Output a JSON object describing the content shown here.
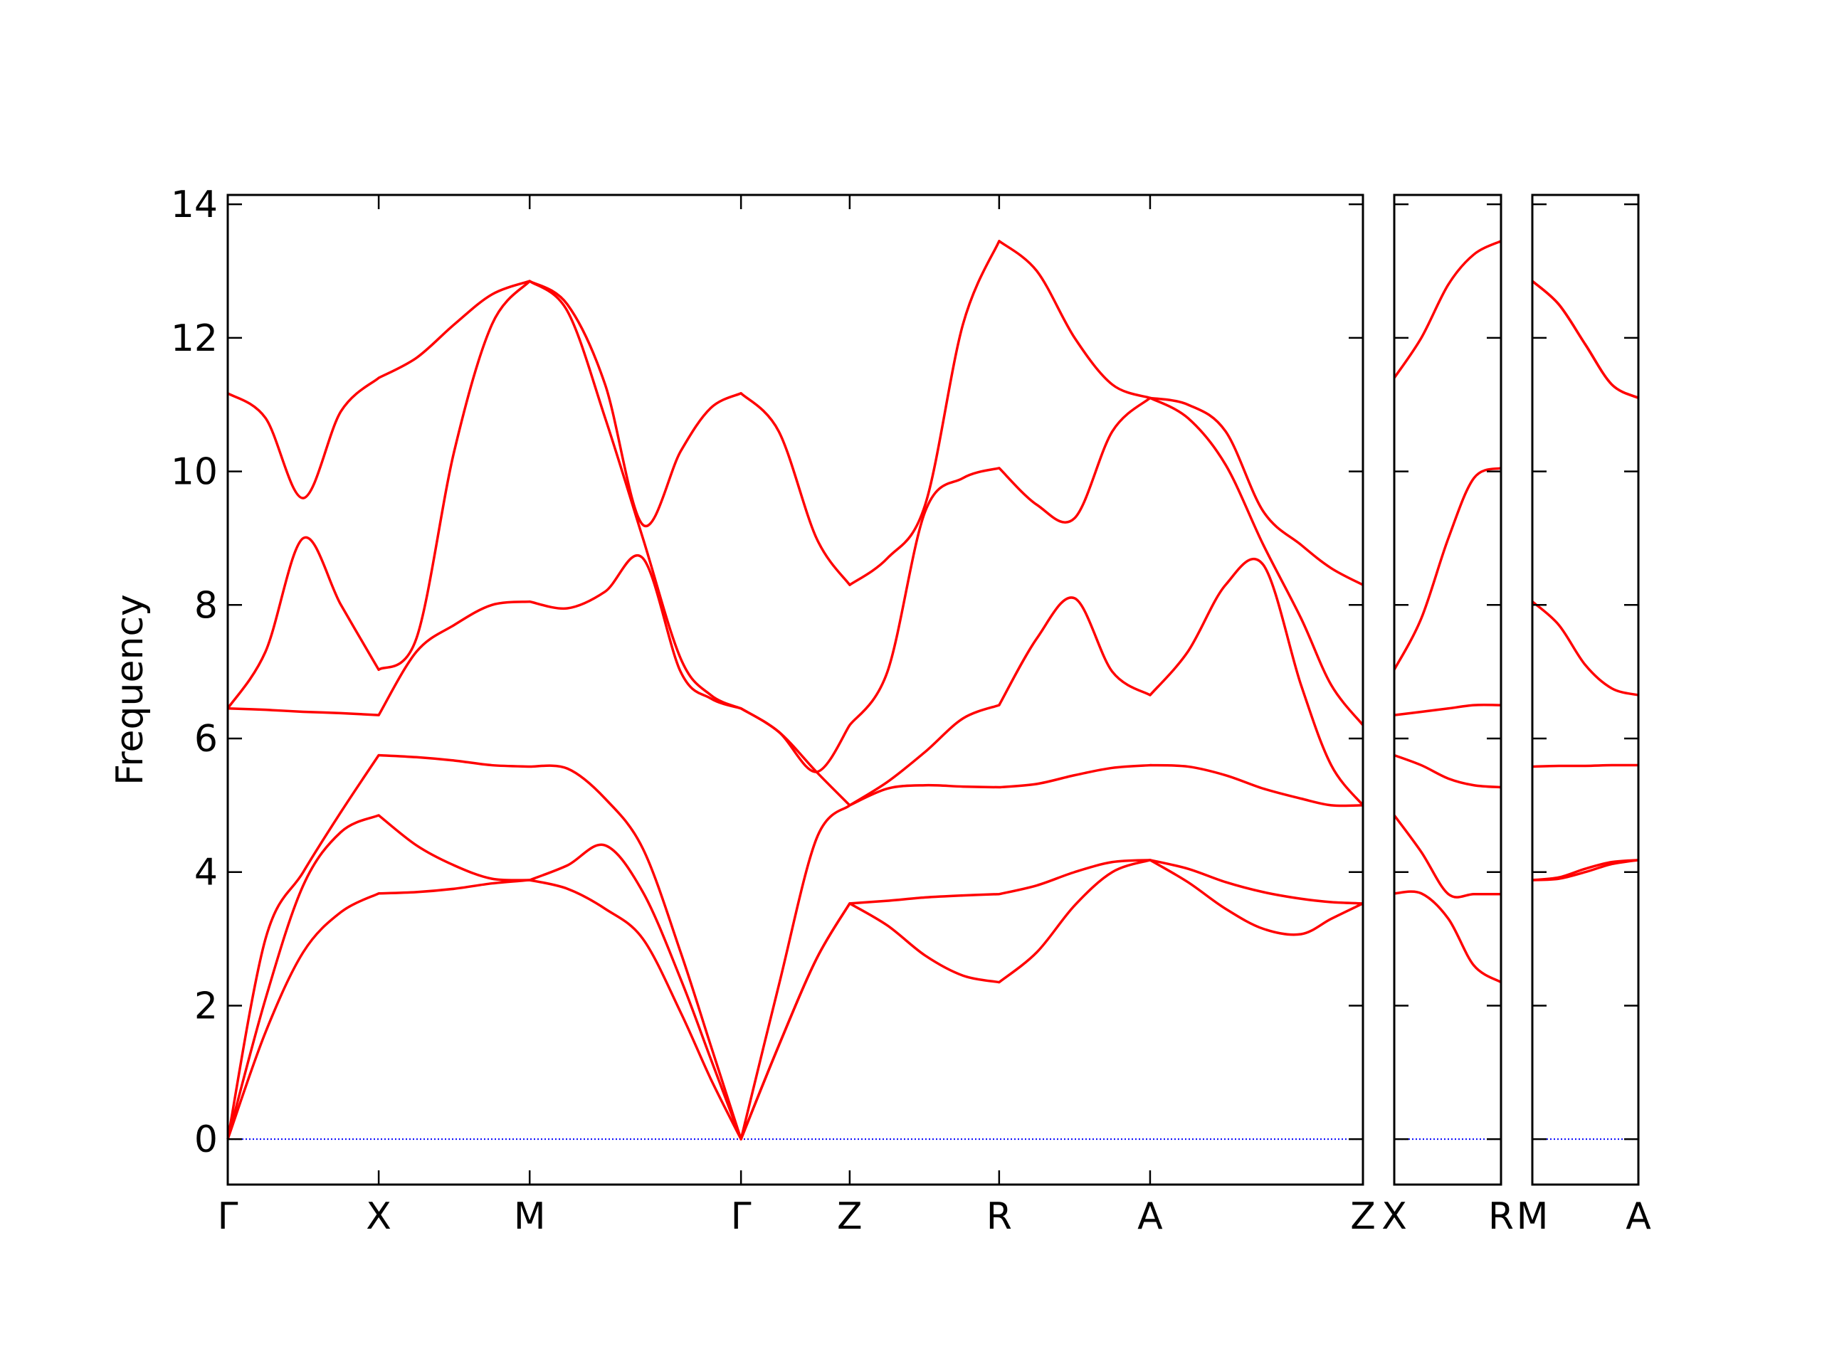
{
  "chart_data": [
    {
      "type": "line",
      "ylabel": "Frequency",
      "ylim": [
        -0.68,
        14.14
      ],
      "yticks": [
        0,
        2,
        4,
        6,
        8,
        10,
        12,
        14
      ],
      "xlim": [
        0,
        7.52
      ],
      "xticks": [
        {
          "value": 0,
          "label": "Γ"
        },
        {
          "value": 1,
          "label": "X"
        },
        {
          "value": 2,
          "label": "M"
        },
        {
          "value": 3.4,
          "label": "Γ"
        },
        {
          "value": 4.12,
          "label": "Z"
        },
        {
          "value": 5.11,
          "label": "R"
        },
        {
          "value": 6.11,
          "label": "A"
        },
        {
          "value": 7.52,
          "label": "Z"
        }
      ],
      "hline": {
        "value": 0,
        "color": "#0000ff"
      },
      "x": [
        0,
        0.25,
        0.5,
        0.75,
        1,
        1.25,
        1.5,
        1.75,
        2,
        2.25,
        2.5,
        2.75,
        3.0,
        3.2,
        3.4,
        3.65,
        3.9,
        4.12,
        4.37,
        4.62,
        4.87,
        5.11,
        5.36,
        5.61,
        5.86,
        6.11,
        6.36,
        6.61,
        6.86,
        7.11,
        7.31,
        7.52
      ],
      "series": [
        {
          "color": "#ff0000",
          "values": [
            0,
            1.6,
            2.8,
            3.4,
            3.68,
            3.7,
            3.75,
            3.83,
            3.88,
            3.75,
            3.45,
            3.0,
            1.9,
            0.9,
            0,
            1.4,
            2.7,
            3.53,
            3.2,
            2.75,
            2.45,
            2.35,
            2.8,
            3.5,
            4.0,
            4.18,
            3.85,
            3.45,
            3.15,
            3.07,
            3.3,
            3.53
          ]
        },
        {
          "color": "#ff0000",
          "values": [
            0,
            2.1,
            3.8,
            4.6,
            4.85,
            4.4,
            4.1,
            3.9,
            3.88,
            4.1,
            4.4,
            3.7,
            2.4,
            1.2,
            0,
            1.4,
            2.7,
            3.53,
            3.57,
            3.62,
            3.65,
            3.67,
            3.8,
            4.0,
            4.15,
            4.18,
            4.05,
            3.85,
            3.7,
            3.6,
            3.55,
            3.53
          ]
        },
        {
          "color": "#ff0000",
          "values": [
            0,
            3.0,
            4.0,
            4.9,
            5.75,
            5.72,
            5.67,
            5.6,
            5.58,
            5.55,
            5.1,
            4.35,
            2.8,
            1.4,
            0,
            2.3,
            4.5,
            5.0,
            5.25,
            5.3,
            5.28,
            5.27,
            5.32,
            5.45,
            5.56,
            5.6,
            5.58,
            5.45,
            5.25,
            5.1,
            5.0,
            5.0
          ]
        },
        {
          "color": "#ff0000",
          "values": [
            6.45,
            6.43,
            6.4,
            6.38,
            6.35,
            7.3,
            7.7,
            8.0,
            8.05,
            7.95,
            8.2,
            8.7,
            7.0,
            6.6,
            6.45,
            6.1,
            5.5,
            5.0,
            5.35,
            5.8,
            6.3,
            6.5,
            7.5,
            8.1,
            7.0,
            6.65,
            7.3,
            8.3,
            8.6,
            6.8,
            5.6,
            5.0
          ]
        },
        {
          "color": "#ff0000",
          "values": [
            6.45,
            7.3,
            9.0,
            8.0,
            7.03,
            7.5,
            10.3,
            12.2,
            12.85,
            12.4,
            10.8,
            9.0,
            7.2,
            6.65,
            6.45,
            6.1,
            5.5,
            6.2,
            7.0,
            9.4,
            9.9,
            10.05,
            9.5,
            9.3,
            10.6,
            11.1,
            10.8,
            10.1,
            8.9,
            7.8,
            6.8,
            6.2
          ]
        },
        {
          "color": "#ff0000",
          "values": [
            11.17,
            10.8,
            9.6,
            10.9,
            11.4,
            11.7,
            12.2,
            12.65,
            12.85,
            12.5,
            11.3,
            9.2,
            10.3,
            10.95,
            11.17,
            10.6,
            9.0,
            8.3,
            8.7,
            9.5,
            12.2,
            13.45,
            13.0,
            12.0,
            11.3,
            11.1,
            11.0,
            10.6,
            9.4,
            8.9,
            8.55,
            8.3
          ]
        }
      ]
    },
    {
      "type": "line",
      "xlim": [
        0,
        0.71
      ],
      "xticks": [
        {
          "value": 0,
          "label": "X"
        },
        {
          "value": 0.71,
          "label": "R"
        }
      ],
      "hline": {
        "value": 0,
        "color": "#0000ff"
      },
      "x": [
        0,
        0.18,
        0.36,
        0.53,
        0.71
      ],
      "series": [
        {
          "color": "#ff0000",
          "values": [
            3.68,
            3.68,
            3.3,
            2.6,
            2.35
          ]
        },
        {
          "color": "#ff0000",
          "values": [
            4.85,
            4.3,
            3.67,
            3.67,
            3.67
          ]
        },
        {
          "color": "#ff0000",
          "values": [
            5.75,
            5.6,
            5.4,
            5.3,
            5.27
          ]
        },
        {
          "color": "#ff0000",
          "values": [
            6.35,
            6.4,
            6.45,
            6.5,
            6.5
          ]
        },
        {
          "color": "#ff0000",
          "values": [
            7.03,
            7.8,
            9.0,
            9.9,
            10.05
          ]
        },
        {
          "color": "#ff0000",
          "values": [
            11.4,
            12.0,
            12.8,
            13.25,
            13.45
          ]
        }
      ]
    },
    {
      "type": "line",
      "xlim": [
        0,
        0.7
      ],
      "xticks": [
        {
          "value": 0,
          "label": "M"
        },
        {
          "value": 0.7,
          "label": "A"
        }
      ],
      "hline": {
        "value": 0,
        "color": "#0000ff"
      },
      "x": [
        0,
        0.175,
        0.35,
        0.525,
        0.7
      ],
      "series": [
        {
          "color": "#ff0000",
          "values": [
            3.88,
            3.9,
            4.0,
            4.12,
            4.18
          ]
        },
        {
          "color": "#ff0000",
          "values": [
            3.88,
            3.92,
            4.05,
            4.15,
            4.18
          ]
        },
        {
          "color": "#ff0000",
          "values": [
            5.58,
            5.59,
            5.59,
            5.6,
            5.6
          ]
        },
        {
          "color": "#ff0000",
          "values": [
            8.05,
            7.7,
            7.1,
            6.75,
            6.65
          ]
        },
        {
          "color": "#ff0000",
          "values": [
            12.85,
            12.5,
            11.9,
            11.3,
            11.1
          ]
        },
        {
          "color": "#ff0000",
          "values": [
            12.85,
            12.5,
            11.9,
            11.3,
            11.1
          ]
        }
      ]
    }
  ]
}
